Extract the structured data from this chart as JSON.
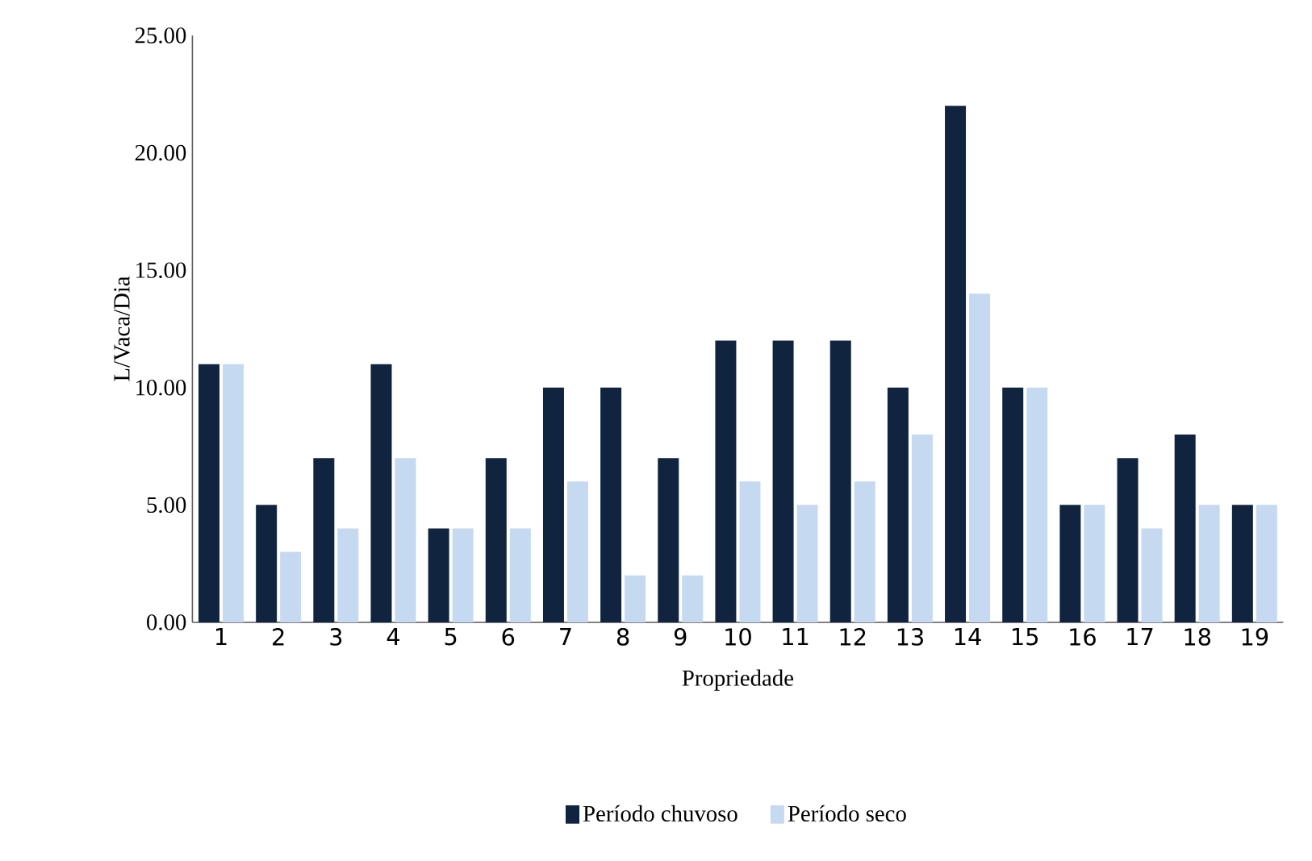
{
  "chart_data": {
    "type": "bar",
    "xlabel": "Propriedade",
    "ylabel": "L/Vaca/Dia",
    "categories": [
      "1",
      "2",
      "3",
      "4",
      "5",
      "6",
      "7",
      "8",
      "9",
      "10",
      "11",
      "12",
      "13",
      "14",
      "15",
      "16",
      "17",
      "18",
      "19"
    ],
    "series": [
      {
        "name": "Período chuvoso",
        "color": "#10243f",
        "values": [
          11,
          5,
          7,
          11,
          4,
          7,
          10,
          10,
          7,
          12,
          12,
          12,
          10,
          22,
          10,
          5,
          7,
          8,
          5
        ]
      },
      {
        "name": "Período seco",
        "color": "#c5d9f1",
        "values": [
          11,
          3,
          4,
          7,
          4,
          4,
          6,
          2,
          2,
          6,
          5,
          6,
          8,
          14,
          10,
          5,
          4,
          5,
          5
        ]
      }
    ],
    "ylim": [
      0,
      25
    ],
    "yticks": [
      {
        "value": 0,
        "label": "0.00"
      },
      {
        "value": 5,
        "label": "5.00"
      },
      {
        "value": 10,
        "label": "10.00"
      },
      {
        "value": 15,
        "label": "15.00"
      },
      {
        "value": 20,
        "label": "20.00"
      },
      {
        "value": 25,
        "label": "25.00"
      }
    ],
    "grid": false,
    "legend": "bottom"
  }
}
